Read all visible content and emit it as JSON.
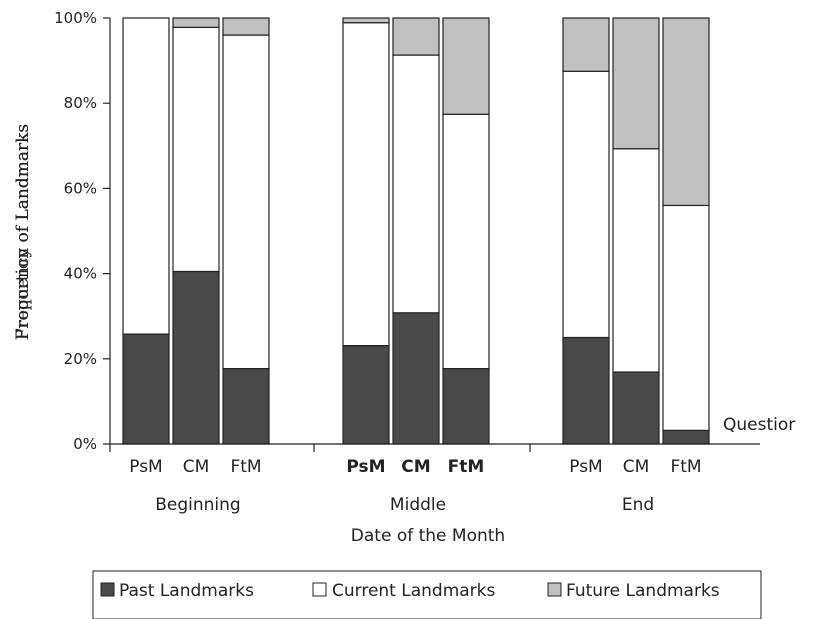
{
  "chart_data": {
    "type": "bar",
    "stacked": true,
    "stack_mode": "percent",
    "groups": [
      "Beginning",
      "Middle",
      "End"
    ],
    "categories": [
      "PsM",
      "CM",
      "FtM"
    ],
    "bold_category_group": "Middle",
    "series": [
      {
        "name": "Past Landmarks",
        "color": "#4a4a4a",
        "values": [
          [
            25.8,
            40.5,
            17.7
          ],
          [
            23.1,
            30.8,
            17.7
          ],
          [
            25.0,
            16.9,
            3.2
          ]
        ]
      },
      {
        "name": "Current Landmarks",
        "color": "#ffffff",
        "values": [
          [
            74.2,
            57.3,
            78.3
          ],
          [
            75.8,
            60.5,
            59.7
          ],
          [
            62.5,
            52.4,
            52.8
          ]
        ]
      },
      {
        "name": "Future Landmarks",
        "color": "#c0c0c0",
        "values": [
          [
            0.0,
            2.2,
            4.0
          ],
          [
            1.1,
            8.7,
            22.6
          ],
          [
            12.5,
            30.7,
            44.0
          ]
        ]
      }
    ],
    "ylabel": "Frequency of Landmarks",
    "ylabel_overlap": "Proportion of Landmarks",
    "xlabel": "Date of the Month",
    "extra_label": "Questior",
    "yticks": [
      "0%",
      "20%",
      "40%",
      "60%",
      "80%",
      "100%"
    ],
    "ylim": [
      0,
      100
    ],
    "legend": [
      "Past Landmarks",
      "Current Landmarks",
      "Future Landmarks"
    ],
    "legend_position": "bottom",
    "grid": false
  }
}
